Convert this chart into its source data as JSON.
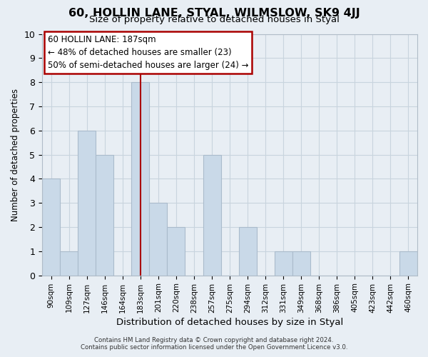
{
  "title": "60, HOLLIN LANE, STYAL, WILMSLOW, SK9 4JJ",
  "subtitle": "Size of property relative to detached houses in Styal",
  "xlabel": "Distribution of detached houses by size in Styal",
  "ylabel": "Number of detached properties",
  "bin_labels": [
    "90sqm",
    "109sqm",
    "127sqm",
    "146sqm",
    "164sqm",
    "183sqm",
    "201sqm",
    "220sqm",
    "238sqm",
    "257sqm",
    "275sqm",
    "294sqm",
    "312sqm",
    "331sqm",
    "349sqm",
    "368sqm",
    "386sqm",
    "405sqm",
    "423sqm",
    "442sqm",
    "460sqm"
  ],
  "bar_heights": [
    4,
    1,
    6,
    5,
    0,
    8,
    3,
    2,
    0,
    5,
    0,
    2,
    0,
    1,
    1,
    0,
    0,
    0,
    0,
    0,
    1
  ],
  "bar_color": "#c9d9e8",
  "bar_edge_color": "#aabbcc",
  "vline_x_index": 5,
  "vline_color": "#aa0000",
  "ylim": [
    0,
    10
  ],
  "yticks": [
    0,
    1,
    2,
    3,
    4,
    5,
    6,
    7,
    8,
    9,
    10
  ],
  "annotation_title": "60 HOLLIN LANE: 187sqm",
  "annotation_line1": "← 48% of detached houses are smaller (23)",
  "annotation_line2": "50% of semi-detached houses are larger (24) →",
  "annotation_box_color": "#ffffff",
  "annotation_box_edge": "#aa0000",
  "footer_line1": "Contains HM Land Registry data © Crown copyright and database right 2024.",
  "footer_line2": "Contains public sector information licensed under the Open Government Licence v3.0.",
  "background_color": "#e8eef4",
  "plot_bg_color": "#e8eef4",
  "grid_color": "#c8d4de"
}
